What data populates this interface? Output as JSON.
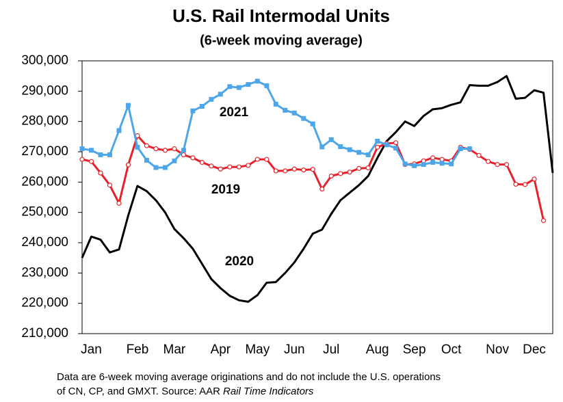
{
  "chart_data": {
    "type": "line",
    "title": "U.S. Rail Intermodal Units",
    "subtitle": "(6-week moving average)",
    "notes": [
      "Data are 6-week moving average originations and do not include the U.S. operations",
      "of CN, CP, and GMXT.   Source: AAR",
      "Rail Time Indicators"
    ],
    "categories": [
      null,
      "Jan",
      null,
      null,
      null,
      null,
      "Feb",
      null,
      null,
      null,
      "Mar",
      null,
      null,
      null,
      null,
      "Apr",
      null,
      null,
      null,
      "May",
      null,
      null,
      null,
      "Jun",
      null,
      null,
      null,
      "Jul",
      null,
      null,
      null,
      null,
      "Aug",
      null,
      null,
      null,
      "Sep",
      null,
      null,
      null,
      "Oct",
      null,
      null,
      null,
      null,
      "Nov",
      null,
      null,
      null,
      "Dec",
      null,
      null
    ],
    "ylim": [
      210000,
      300000
    ],
    "yticks": [
      {
        "value": 210000,
        "label": "210,000"
      },
      {
        "value": 220000,
        "label": "220,000"
      },
      {
        "value": 230000,
        "label": "230,000"
      },
      {
        "value": 240000,
        "label": "240,000"
      },
      {
        "value": 250000,
        "label": "250,000"
      },
      {
        "value": 260000,
        "label": "260,000"
      },
      {
        "value": 270000,
        "label": "270,000"
      },
      {
        "value": 280000,
        "label": "280,000"
      },
      {
        "value": 290000,
        "label": "290,000"
      },
      {
        "value": 300000,
        "label": "300,000"
      }
    ],
    "grid": false,
    "series": [
      {
        "name": "2020",
        "color": "#000000",
        "marker": "none",
        "values": [
          235000,
          242000,
          241000,
          236800,
          237800,
          249000,
          258700,
          257000,
          254000,
          250000,
          244500,
          241500,
          238000,
          233000,
          228000,
          225000,
          222500,
          221000,
          220500,
          222700,
          226800,
          227000,
          230000,
          233500,
          238000,
          243000,
          244300,
          249500,
          254000,
          256500,
          259000,
          262000,
          268000,
          273500,
          276500,
          280000,
          278500,
          281800,
          284000,
          284400,
          285500,
          286300,
          292000,
          291800,
          291800,
          293000,
          295000,
          287500,
          287800,
          290300,
          289500,
          263000
        ]
      },
      {
        "name": "2019",
        "color": "#e8202a",
        "marker": "circle",
        "values": [
          267500,
          266800,
          263000,
          259000,
          253000,
          265700,
          275300,
          272000,
          271000,
          270500,
          271000,
          269000,
          268000,
          266500,
          265300,
          264300,
          265000,
          265000,
          265500,
          267500,
          267500,
          263700,
          263700,
          264300,
          264000,
          264200,
          257700,
          262000,
          262800,
          263300,
          264500,
          264700,
          271500,
          272700,
          273000,
          265800,
          266000,
          267000,
          268000,
          267500,
          267000,
          271500,
          270800,
          268800,
          266800,
          265800,
          265800,
          259300,
          259200,
          261000,
          247300,
          null
        ]
      },
      {
        "name": "2021",
        "color": "#4da6e8",
        "marker": "square",
        "values": [
          271000,
          270500,
          269000,
          269000,
          277000,
          285300,
          271500,
          267200,
          264800,
          264800,
          267000,
          270500,
          283500,
          285000,
          287300,
          289000,
          291500,
          291200,
          292200,
          293300,
          291800,
          285700,
          283700,
          282800,
          281000,
          279200,
          271600,
          274000,
          271700,
          270700,
          269800,
          269000,
          273500,
          272300,
          271200,
          266000,
          265400,
          265800,
          266500,
          266200,
          266000,
          271000,
          271000,
          null,
          null,
          null,
          null,
          null,
          null,
          null,
          null,
          null
        ]
      }
    ]
  }
}
